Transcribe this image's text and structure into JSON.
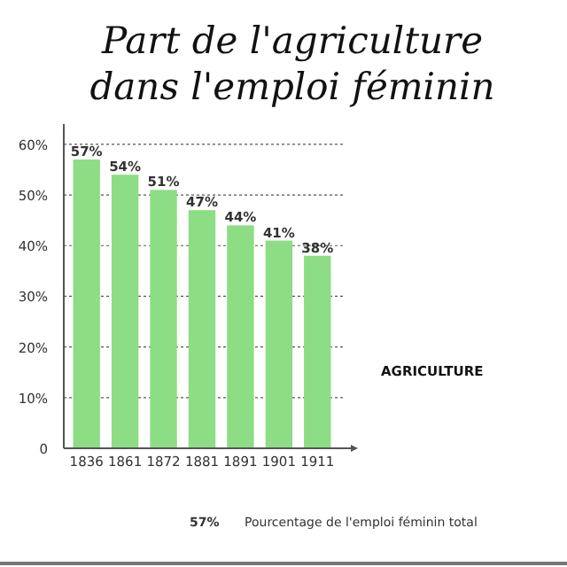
{
  "chart_data": {
    "type": "bar",
    "title": "Part de l'agriculture\ndans l'emploi féminin",
    "categories": [
      "1836",
      "1861",
      "1872",
      "1881",
      "1891",
      "1901",
      "1911"
    ],
    "series": [
      {
        "name": "AGRICULTURE",
        "color": "#8ddd85",
        "values": [
          57,
          54,
          51,
          47,
          44,
          41,
          38
        ],
        "value_labels": [
          "57%",
          "54%",
          "51%",
          "47%",
          "44%",
          "41%",
          "38%"
        ]
      }
    ],
    "ylim": [
      0,
      64
    ],
    "yticks": [
      {
        "value": 0,
        "label": "0"
      },
      {
        "value": 10,
        "label": "10%"
      },
      {
        "value": 20,
        "label": "20%"
      },
      {
        "value": 30,
        "label": "30%"
      },
      {
        "value": 40,
        "label": "40%"
      },
      {
        "value": 50,
        "label": "50%"
      },
      {
        "value": 60,
        "label": "60%"
      }
    ],
    "grid": "y",
    "legend": "right",
    "annotations": [
      "57%",
      "Pourcentage de l'emploi féminin total"
    ]
  }
}
